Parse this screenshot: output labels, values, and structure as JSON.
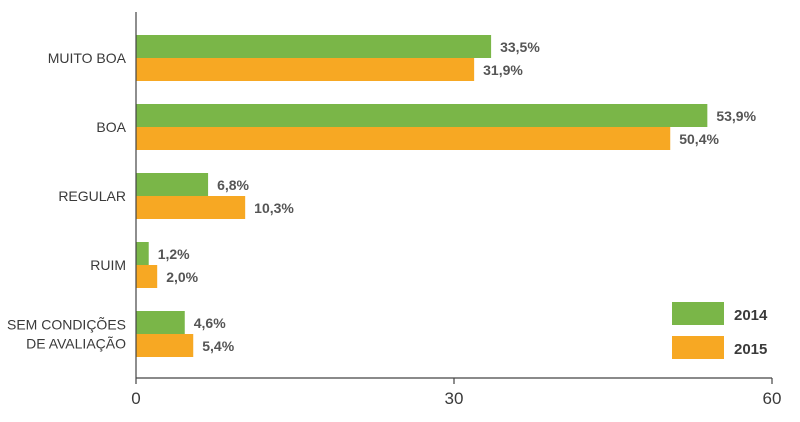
{
  "chart_data": {
    "type": "bar",
    "orientation": "horizontal",
    "categories": [
      [
        "MUITO BOA"
      ],
      [
        "BOA"
      ],
      [
        "REGULAR"
      ],
      [
        "RUIM"
      ],
      [
        "SEM CONDIÇÕES",
        "DE AVALIAÇÃO"
      ]
    ],
    "series": [
      {
        "name": "2014",
        "color": "#7ab648",
        "values": [
          33.5,
          53.9,
          6.8,
          1.2,
          4.6
        ],
        "labels": [
          "33,5%",
          "53,9%",
          "6,8%",
          "1,2%",
          "4,6%"
        ]
      },
      {
        "name": "2015",
        "color": "#f7a823",
        "values": [
          31.9,
          50.4,
          10.3,
          2.0,
          5.4
        ],
        "labels": [
          "31,9%",
          "50,4%",
          "10,3%",
          "2,0%",
          "5,4%"
        ]
      }
    ],
    "xlim": [
      0,
      60
    ],
    "xticks": [
      0,
      30,
      60
    ],
    "tick_labels": [
      "0",
      "30",
      "60"
    ],
    "legend_position": "bottom-right",
    "grid": false
  }
}
